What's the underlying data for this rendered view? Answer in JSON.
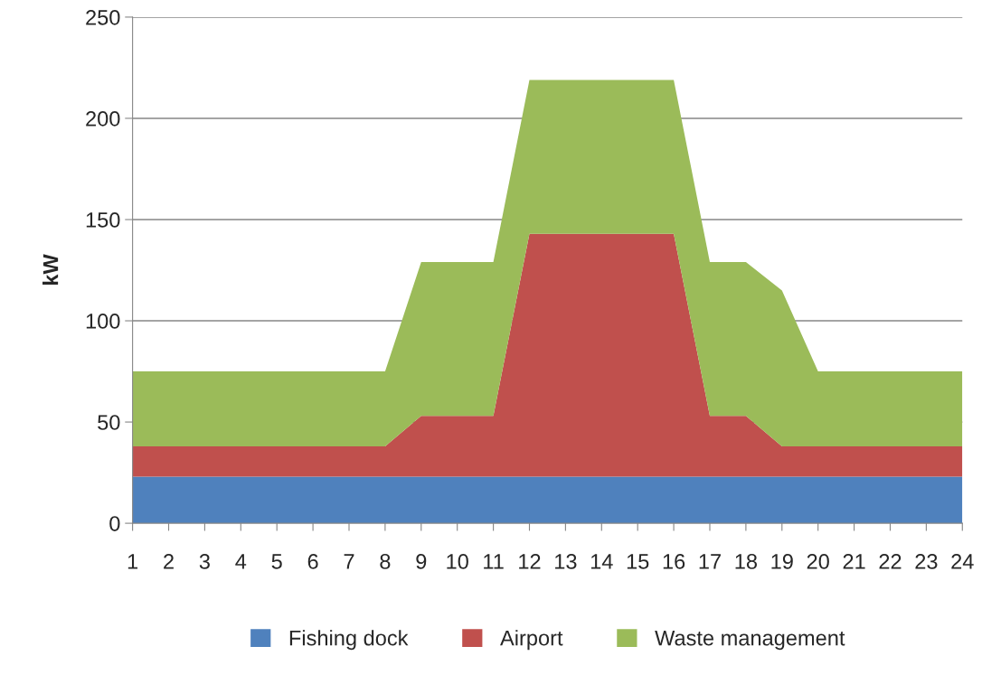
{
  "chart_data": {
    "type": "area",
    "stacked": true,
    "ylabel": "kW",
    "categories": [
      "1",
      "2",
      "3",
      "4",
      "5",
      "6",
      "7",
      "8",
      "9",
      "10",
      "11",
      "12",
      "13",
      "14",
      "15",
      "16",
      "17",
      "18",
      "19",
      "20",
      "21",
      "22",
      "23",
      "24"
    ],
    "series": [
      {
        "name": "Fishing dock",
        "color": "#4f81bd",
        "values": [
          23,
          23,
          23,
          23,
          23,
          23,
          23,
          23,
          23,
          23,
          23,
          23,
          23,
          23,
          23,
          23,
          23,
          23,
          23,
          23,
          23,
          23,
          23,
          23
        ]
      },
      {
        "name": "Airport",
        "color": "#c0504d",
        "values": [
          15,
          15,
          15,
          15,
          15,
          15,
          15,
          15,
          30,
          30,
          30,
          120,
          120,
          120,
          120,
          120,
          30,
          30,
          15,
          15,
          15,
          15,
          15,
          15
        ]
      },
      {
        "name": "Waste management",
        "color": "#9bbb59",
        "values": [
          37,
          37,
          37,
          37,
          37,
          37,
          37,
          37,
          76,
          76,
          76,
          76,
          76,
          76,
          76,
          76,
          76,
          76,
          77,
          37,
          37,
          37,
          37,
          37
        ]
      }
    ],
    "ylim": [
      0,
      250
    ],
    "yticks": [
      0,
      50,
      100,
      150,
      200,
      250
    ],
    "grid": "y",
    "legend": "bottom"
  }
}
